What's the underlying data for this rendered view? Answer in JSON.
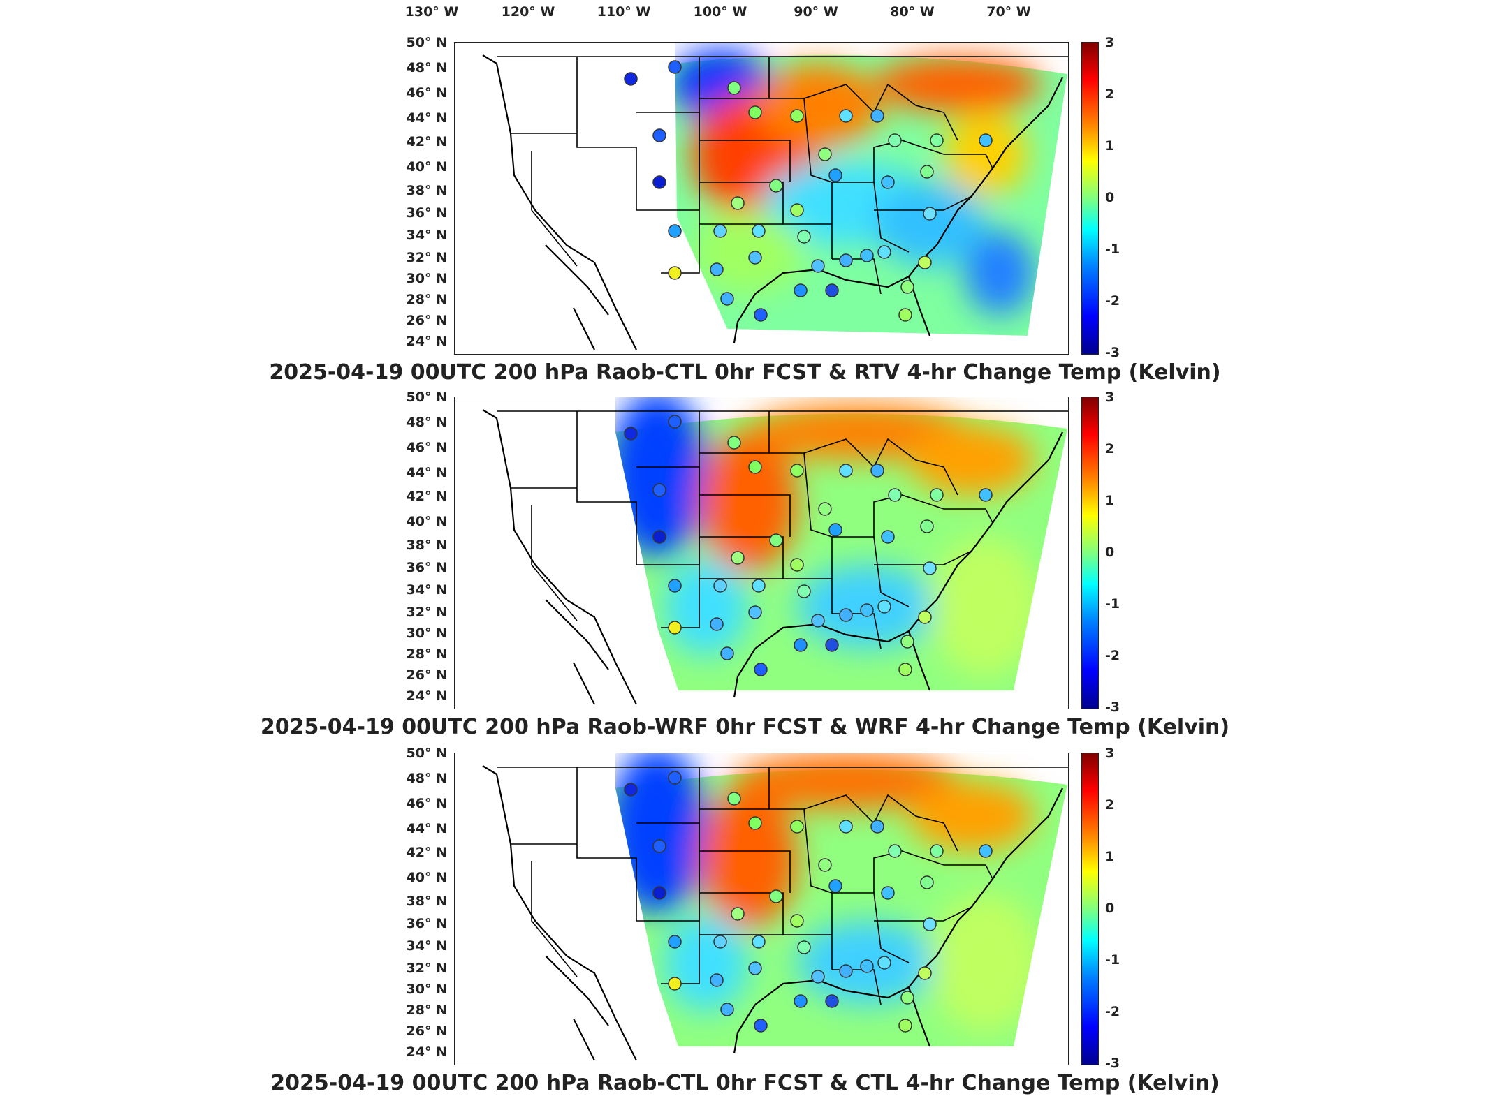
{
  "longitude_labels": [
    "130° W",
    "120° W",
    "110° W",
    "100° W",
    "90° W",
    "80° W",
    "70° W"
  ],
  "latitude_labels": [
    "50° N",
    "48° N",
    "46° N",
    "44° N",
    "42° N",
    "40° N",
    "38° N",
    "36° N",
    "34° N",
    "32° N",
    "30° N",
    "28° N",
    "26° N",
    "24° N"
  ],
  "colorbar": {
    "ticks": [
      "3",
      "2",
      "1",
      "0",
      "-1",
      "-2",
      "-3"
    ],
    "range": [
      -3,
      3
    ],
    "colormap": "jet"
  },
  "panels": [
    {
      "title": "2025-04-19 00UTC 200 hPa Raob-CTL 0hr FCST & RTV 4-hr Change Temp (Kelvin)"
    },
    {
      "title": "2025-04-19 00UTC 200 hPa Raob-WRF 0hr FCST & WRF 4-hr Change Temp (Kelvin)"
    },
    {
      "title": "2025-04-19 00UTC 200 hPa Raob-CTL 0hr FCST & CTL 4-hr Change Temp (Kelvin)"
    }
  ],
  "colors": {
    "cold": "#0030ff",
    "cool": "#40c0ff",
    "neutral": "#a0ff70",
    "warm": "#ffb000",
    "hot": "#e82000"
  }
}
